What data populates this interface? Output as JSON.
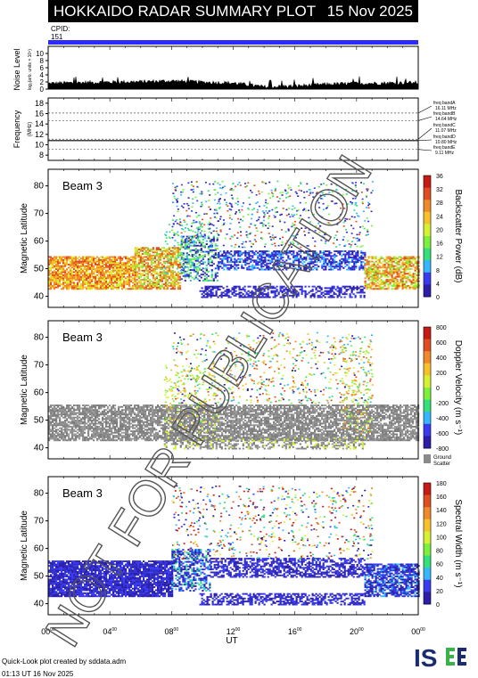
{
  "header": {
    "title": "HOKKAIDO RADAR SUMMARY PLOT",
    "date": "15 Nov 2025"
  },
  "cpid": {
    "label": "CPID:",
    "value": "151"
  },
  "noise_panel": {
    "ylabel": "Noise Level",
    "ylabel_sub": "log₂(arb. units × 10⁴)",
    "ticks": [
      "10",
      "8",
      "6",
      "4",
      "2",
      "0"
    ]
  },
  "freq_panel": {
    "ylabel": "Frequency",
    "ylabel_sub": "(MHz)",
    "ticks": [
      "18",
      "16",
      "14",
      "12",
      "10",
      "8"
    ],
    "bands": [
      {
        "name": "freq bandA",
        "value": "16.11 MHz"
      },
      {
        "name": "freq bandB",
        "value": "14.64 MHz"
      },
      {
        "name": "freq bandC",
        "value": "11.07 MHz"
      },
      {
        "name": "freq bandD",
        "value": "10.80 MHz"
      },
      {
        "name": "freq bandE",
        "value": "9.11 MHz"
      }
    ]
  },
  "panels": [
    {
      "beam": "Beam  3",
      "ylabel": "Magnetic Latitude",
      "yticks": [
        "80",
        "70",
        "60",
        "50",
        "40"
      ],
      "cbar_label": "Backscatter Power (dB)",
      "cbar_ticks": [
        "36",
        "32",
        "28",
        "24",
        "20",
        "16",
        "12",
        "8",
        "4",
        "0"
      ]
    },
    {
      "beam": "Beam  3",
      "ylabel": "Magnetic Latitude",
      "yticks": [
        "80",
        "70",
        "60",
        "50",
        "40"
      ],
      "cbar_label": "Doppler Velocity (m s⁻¹)",
      "cbar_ticks": [
        "800",
        "600",
        "400",
        "200",
        "0",
        "-200",
        "-400",
        "-600",
        "-800"
      ],
      "ground_label": [
        "Ground",
        "Scatter"
      ]
    },
    {
      "beam": "Beam  3",
      "ylabel": "Magnetic Latitude",
      "yticks": [
        "80",
        "70",
        "60",
        "50",
        "40"
      ],
      "cbar_label": "Spectral Width (m s⁻¹)",
      "cbar_ticks": [
        "180",
        "160",
        "140",
        "120",
        "100",
        "80",
        "60",
        "40",
        "20",
        "0"
      ]
    }
  ],
  "xaxis": {
    "ticks": [
      {
        "h": "00",
        "m": "00"
      },
      {
        "h": "04",
        "m": "00"
      },
      {
        "h": "08",
        "m": "00"
      },
      {
        "h": "12",
        "m": "00"
      },
      {
        "h": "16",
        "m": "00"
      },
      {
        "h": "20",
        "m": "00"
      },
      {
        "h": "00",
        "m": "00"
      }
    ],
    "label": "UT"
  },
  "watermark": "NOT FOR PUBLICATION",
  "footer": {
    "line1": "Quick-Look plot created by sddata.adm",
    "line2": "01:13 UT 16 Nov 2025"
  },
  "logo": {
    "text": "ISEE"
  },
  "colors": {
    "cpid_bar": "#2b2bff",
    "power_scale": [
      "#2c1ea8",
      "#3a3af0",
      "#35b6ff",
      "#34e07a",
      "#7cf03a",
      "#d8f032",
      "#f5c22a",
      "#f08a28",
      "#e04e20",
      "#c81a14"
    ],
    "velocity_scale": [
      "#2c1ea8",
      "#3a3af0",
      "#35b6ff",
      "#34e07a",
      "#7cf03a",
      "#d8f032",
      "#f5c22a",
      "#f08a28",
      "#e04e20",
      "#c81a14"
    ],
    "ground": "#8a8a8a"
  },
  "chart_data": [
    {
      "type": "line",
      "title": "Noise Level",
      "x": [
        0,
        2,
        4,
        6,
        8,
        10,
        12,
        14,
        16,
        18,
        20,
        22,
        24
      ],
      "values": [
        1.2,
        1.4,
        1.5,
        1.6,
        1.8,
        1.5,
        1.3,
        0.4,
        0.6,
        1.0,
        1.2,
        1.3,
        1.4
      ],
      "xlabel": "UT",
      "ylim": [
        0,
        10
      ]
    },
    {
      "type": "line",
      "title": "Frequency",
      "x": [
        0,
        24
      ],
      "series": [
        {
          "name": "freq bandA",
          "values": [
            16.11,
            16.11
          ]
        },
        {
          "name": "freq bandB",
          "values": [
            14.64,
            14.64
          ]
        },
        {
          "name": "freq bandC",
          "values": [
            11.07,
            11.07
          ]
        },
        {
          "name": "freq bandD",
          "values": [
            10.8,
            10.8
          ]
        },
        {
          "name": "freq bandE",
          "values": [
            9.11,
            9.11
          ]
        }
      ],
      "ylim": [
        8,
        18
      ]
    },
    {
      "type": "heatmap",
      "title": "Backscatter Power (dB)",
      "x_range": [
        0,
        24
      ],
      "ylim": [
        38,
        86
      ],
      "clim": [
        0,
        36
      ],
      "regions": [
        {
          "x0": 0,
          "x1": 5.5,
          "y0": 43,
          "y1": 55,
          "value": 28
        },
        {
          "x0": 5.5,
          "x1": 8.5,
          "y0": 43,
          "y1": 58,
          "value": 24
        },
        {
          "x0": 8.5,
          "x1": 11,
          "y0": 47,
          "y1": 62,
          "value": 16
        },
        {
          "x0": 11,
          "x1": 20.5,
          "y0": 50,
          "y1": 57,
          "value": 4
        },
        {
          "x0": 10,
          "x1": 20.5,
          "y0": 40,
          "y1": 44,
          "value": 2
        },
        {
          "x0": 20.5,
          "x1": 24,
          "y0": 43,
          "y1": 55,
          "value": 26
        }
      ]
    },
    {
      "type": "heatmap",
      "title": "Doppler Velocity (m s-1)",
      "x_range": [
        0,
        24
      ],
      "ylim": [
        38,
        86
      ],
      "clim": [
        -800,
        800
      ],
      "regions": [
        {
          "x0": 0,
          "x1": 24,
          "y0": 43,
          "y1": 56,
          "value": "ground"
        },
        {
          "x0": 9,
          "x1": 20,
          "y0": 58,
          "y1": 68,
          "value": 100
        }
      ]
    },
    {
      "type": "heatmap",
      "title": "Spectral Width (m s-1)",
      "x_range": [
        0,
        24
      ],
      "ylim": [
        38,
        86
      ],
      "clim": [
        0,
        180
      ],
      "regions": [
        {
          "x0": 0,
          "x1": 8,
          "y0": 43,
          "y1": 56,
          "value": 10
        },
        {
          "x0": 10,
          "x1": 20.5,
          "y0": 50,
          "y1": 57,
          "value": 20
        },
        {
          "x0": 20.5,
          "x1": 24,
          "y0": 43,
          "y1": 55,
          "value": 15
        }
      ]
    }
  ]
}
